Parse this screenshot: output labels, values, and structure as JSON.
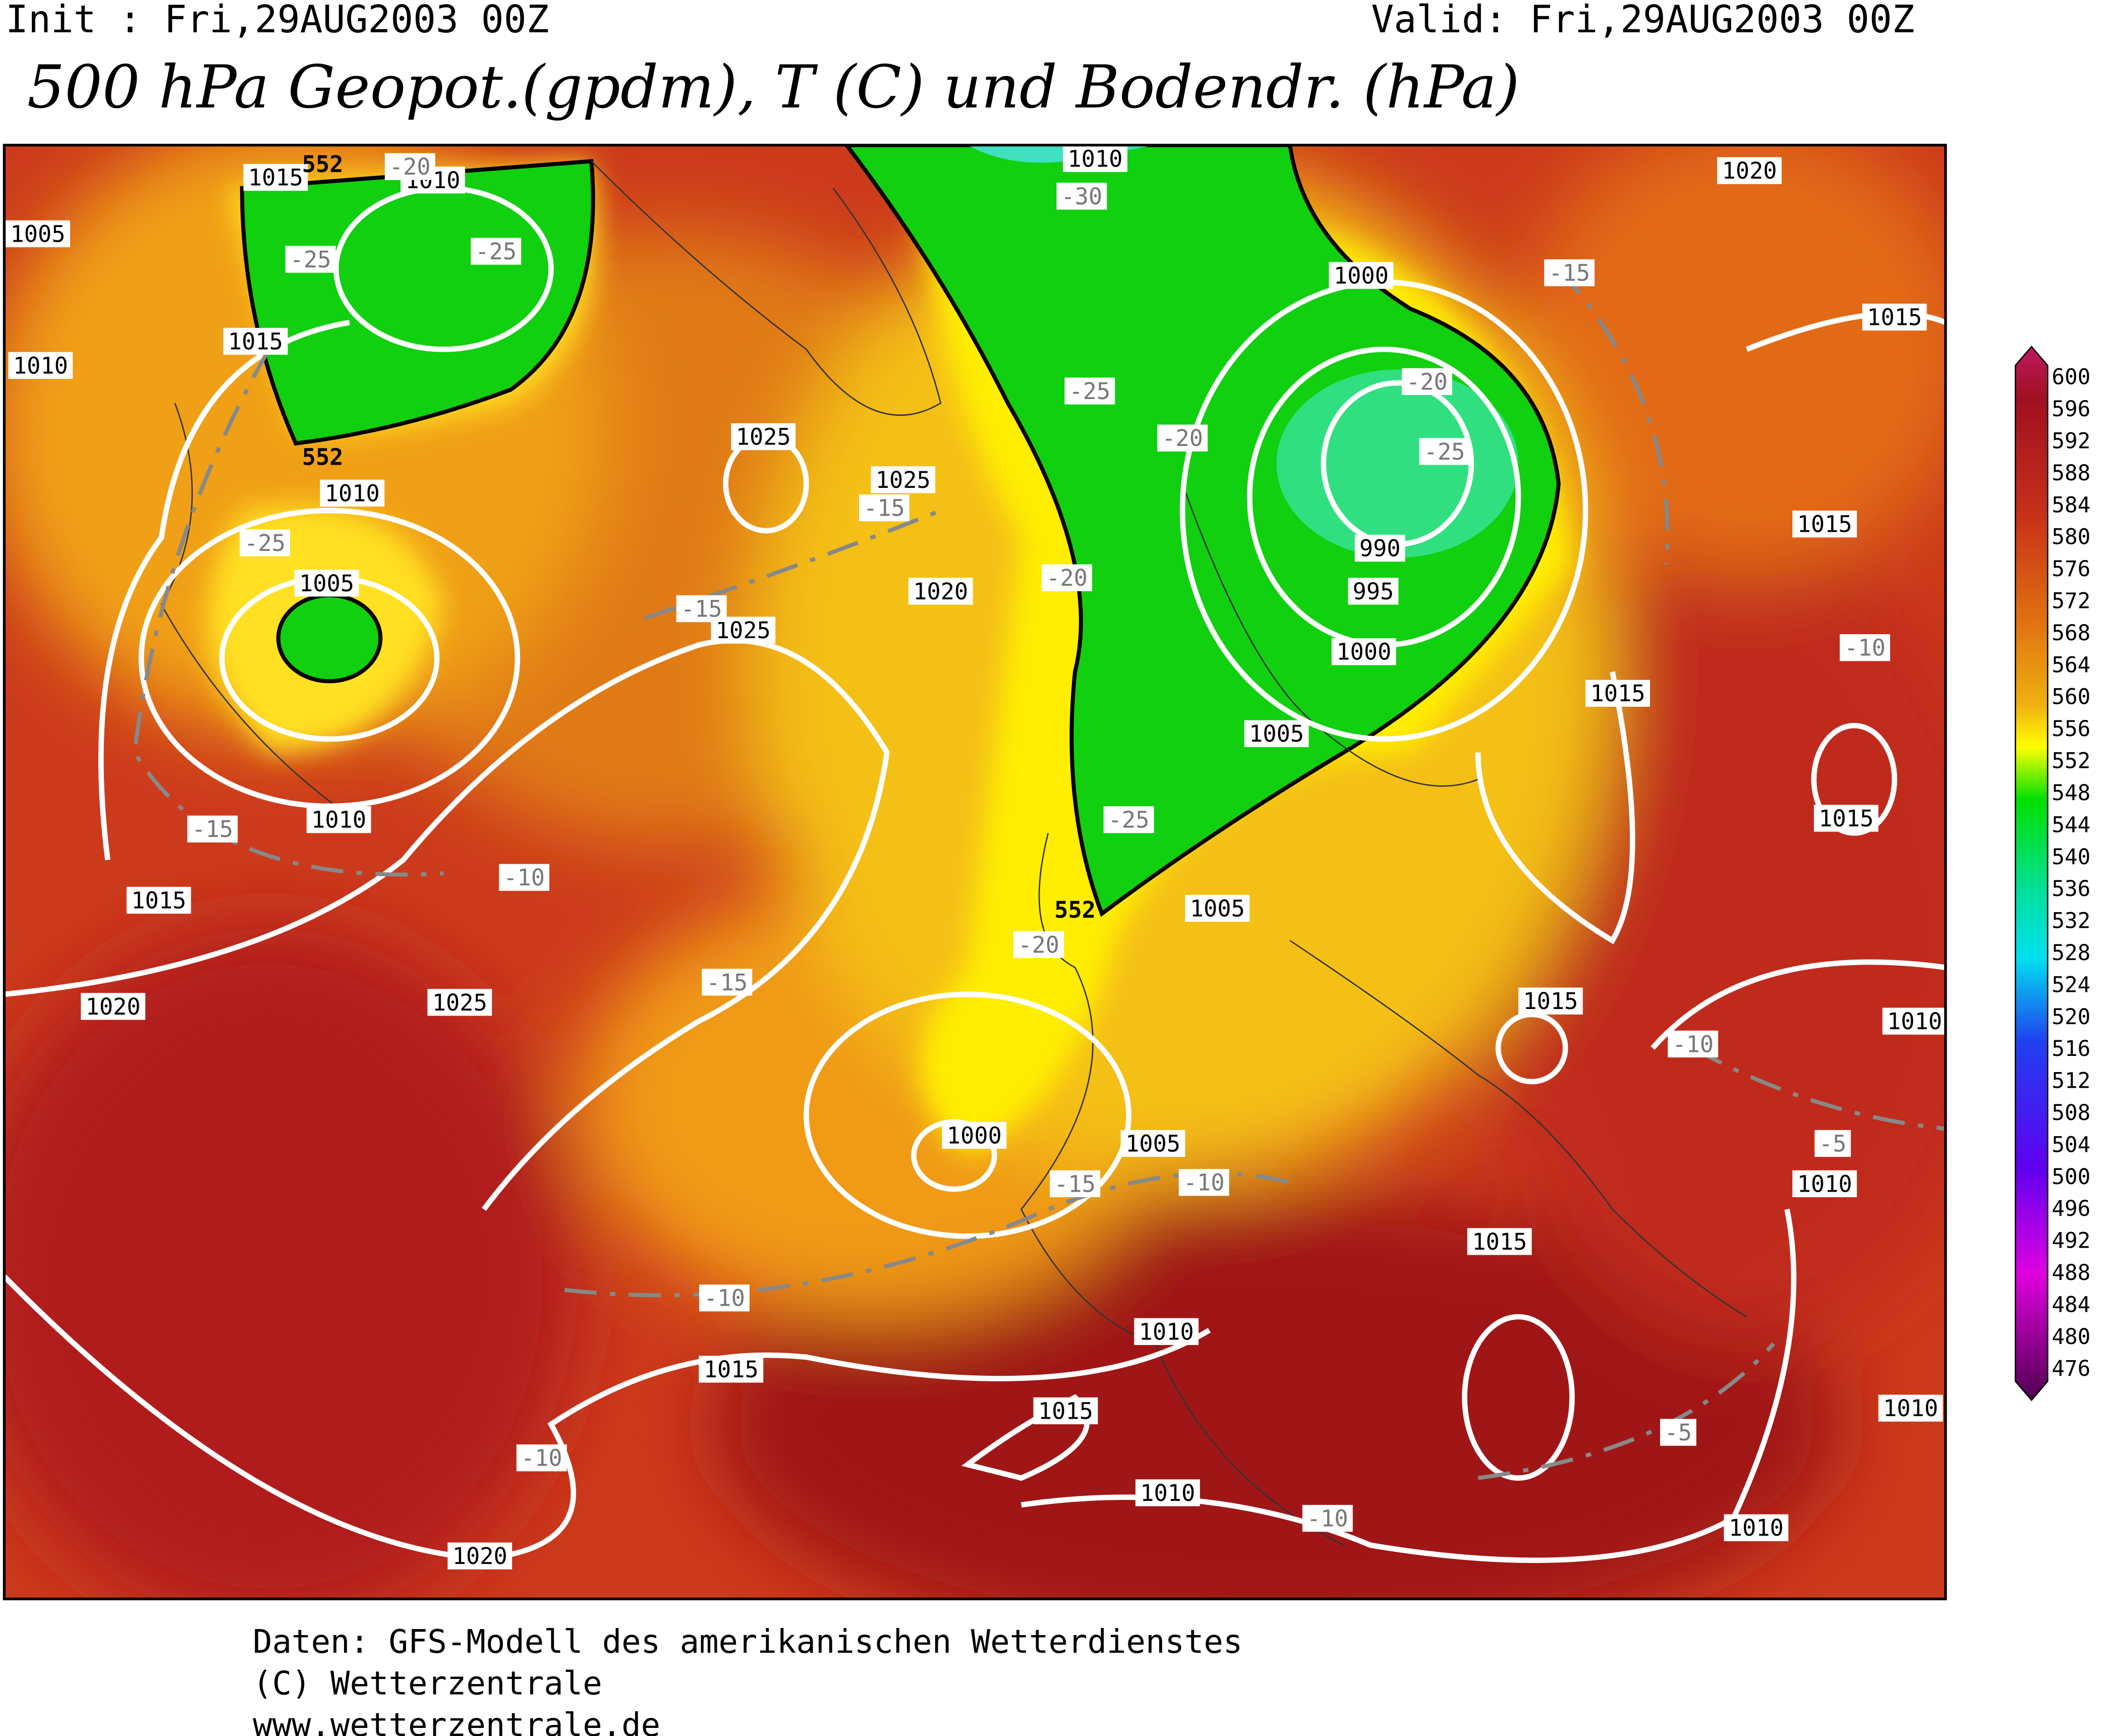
{
  "header": {
    "init": "Init : Fri,29AUG2003 00Z",
    "valid": "Valid: Fri,29AUG2003 00Z",
    "title": "500 hPa Geopot.(gpdm), T (C) und Bodendr. (hPa)"
  },
  "map": {
    "pressure_labels": [
      "1015",
      "1010",
      "1005",
      "1010",
      "1015",
      "1010",
      "1005",
      "1010",
      "1015",
      "1020",
      "1025",
      "1025",
      "1025",
      "1020",
      "1025",
      "1010",
      "1000",
      "990",
      "995",
      "1000",
      "1005",
      "1015",
      "1020",
      "1015",
      "1015",
      "1015",
      "1005",
      "1015",
      "1010",
      "1000",
      "1005",
      "1010",
      "1015",
      "1010",
      "1015",
      "1015",
      "1010",
      "1010",
      "1020",
      "1010"
    ],
    "temperature_labels": [
      "-20",
      "-30",
      "-25",
      "-25",
      "-25",
      "-20",
      "-25",
      "-15",
      "-20",
      "-15",
      "-25",
      "-20",
      "-15",
      "-15",
      "-10",
      "-10",
      "-25",
      "-20",
      "-15",
      "-10",
      "-5",
      "-15",
      "-10",
      "-10",
      "-5",
      "-10",
      "-10"
    ],
    "height_labels": [
      "552",
      "552",
      "552"
    ]
  },
  "legend": {
    "ticks": [
      "600",
      "596",
      "592",
      "588",
      "584",
      "580",
      "576",
      "572",
      "568",
      "564",
      "560",
      "556",
      "552",
      "548",
      "544",
      "540",
      "536",
      "532",
      "528",
      "524",
      "520",
      "516",
      "512",
      "508",
      "504",
      "500",
      "496",
      "492",
      "488",
      "484",
      "480",
      "476"
    ]
  },
  "footer": {
    "lines": [
      "Daten: GFS-Modell des amerikanischen Wetterdienstes",
      "(C) Wetterzentrale",
      "www.wetterzentrale.de"
    ]
  }
}
